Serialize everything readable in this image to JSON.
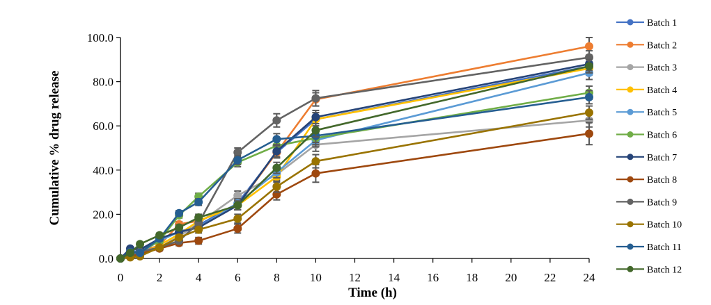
{
  "chart_data": {
    "type": "line",
    "title": "",
    "xlabel": "Time (h)",
    "ylabel": "Cumulative % drug release",
    "xlim": [
      0,
      24
    ],
    "ylim": [
      0,
      100
    ],
    "x_ticks": [
      0,
      2,
      4,
      6,
      8,
      10,
      12,
      14,
      16,
      18,
      20,
      22,
      24
    ],
    "y_ticks": [
      "0.0",
      "20.0",
      "40.0",
      "60.0",
      "80.0",
      "100.0"
    ],
    "y_tick_values": [
      0,
      20,
      40,
      60,
      80,
      100
    ],
    "grid": false,
    "legend_position": "right",
    "error_bars": true,
    "x": [
      0,
      0.5,
      1,
      2,
      3,
      4,
      6,
      8,
      10,
      24
    ],
    "series": [
      {
        "name": "Batch 1",
        "color": "#4472C4",
        "values": [
          0,
          3.5,
          3,
          9,
          12,
          15,
          25,
          48,
          63,
          87
        ],
        "error": [
          0,
          0.8,
          0.8,
          1,
          1.2,
          1.5,
          2,
          2.5,
          3,
          3
        ]
      },
      {
        "name": "Batch 2",
        "color": "#ED7D31",
        "values": [
          0,
          2,
          3,
          6,
          15.5,
          17,
          24,
          48,
          72,
          96
        ],
        "error": [
          0,
          0.8,
          0.8,
          1,
          1.2,
          1.5,
          2,
          2.5,
          3,
          4
        ]
      },
      {
        "name": "Batch 3",
        "color": "#A5A5A5",
        "values": [
          0,
          1.5,
          2,
          5,
          10,
          16,
          28.5,
          38,
          51.5,
          62.5
        ],
        "error": [
          0,
          0.8,
          0.8,
          1,
          1.2,
          1.5,
          2,
          2.5,
          3,
          3
        ]
      },
      {
        "name": "Batch 4",
        "color": "#FFC000",
        "values": [
          0,
          1,
          2,
          6,
          11,
          17,
          24,
          37,
          63,
          86
        ],
        "error": [
          0,
          0.8,
          0.8,
          1,
          1.2,
          1.5,
          2,
          2.5,
          3,
          3
        ]
      },
      {
        "name": "Batch 5",
        "color": "#5B9BD5",
        "values": [
          0,
          2,
          2.5,
          8,
          12,
          14,
          25,
          39,
          53.5,
          84
        ],
        "error": [
          0,
          0.8,
          0.8,
          1,
          1.2,
          1.5,
          2,
          2.5,
          3,
          3
        ]
      },
      {
        "name": "Batch 6",
        "color": "#70AD47",
        "values": [
          0,
          2.5,
          3,
          8,
          19.5,
          28,
          43.5,
          51,
          54.5,
          75
        ],
        "error": [
          0,
          0.8,
          0.8,
          1,
          1.2,
          1.5,
          2,
          2.5,
          3,
          3
        ]
      },
      {
        "name": "Batch 7",
        "color": "#264478",
        "values": [
          0,
          4.5,
          4,
          9,
          12,
          14,
          24,
          48.5,
          64,
          88
        ],
        "error": [
          0,
          0.8,
          0.8,
          1,
          1.2,
          1.5,
          2,
          2.5,
          3,
          3
        ]
      },
      {
        "name": "Batch 8",
        "color": "#9E480E",
        "values": [
          0,
          1,
          2,
          4.5,
          7,
          8,
          13.5,
          29,
          38.5,
          56.5
        ],
        "error": [
          0,
          0.8,
          0.8,
          1,
          1.2,
          1.5,
          2,
          2.5,
          4,
          5
        ]
      },
      {
        "name": "Batch 9",
        "color": "#636363",
        "values": [
          0,
          2,
          3,
          5,
          8,
          16,
          48,
          62.5,
          72.5,
          91
        ],
        "error": [
          0,
          0.8,
          0.8,
          1,
          1.2,
          1.5,
          2,
          3,
          3.5,
          3
        ]
      },
      {
        "name": "Batch 10",
        "color": "#997300",
        "values": [
          0,
          0.5,
          1,
          5,
          9.5,
          13,
          18,
          32.5,
          44,
          66
        ],
        "error": [
          0,
          0.8,
          0.8,
          1,
          1.2,
          1.5,
          2,
          2.5,
          3,
          3
        ]
      },
      {
        "name": "Batch 11",
        "color": "#255E91",
        "values": [
          0,
          3,
          2.5,
          9,
          20.5,
          25.5,
          44.5,
          54,
          55.5,
          73
        ],
        "error": [
          0,
          0.8,
          0.8,
          1,
          1.2,
          1.5,
          2,
          2.5,
          3,
          3
        ]
      },
      {
        "name": "Batch 12",
        "color": "#43682B",
        "values": [
          0,
          2.5,
          6.5,
          10.5,
          14,
          18.5,
          24,
          41,
          58,
          87
        ],
        "error": [
          0,
          0.8,
          0.8,
          1,
          1.2,
          1.5,
          2,
          2.5,
          3,
          3
        ]
      }
    ]
  }
}
